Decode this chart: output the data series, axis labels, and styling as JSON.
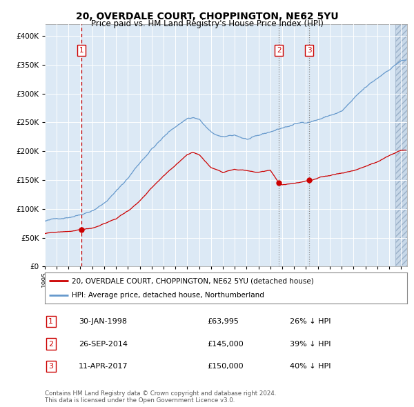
{
  "title1": "20, OVERDALE COURT, CHOPPINGTON, NE62 5YU",
  "title2": "Price paid vs. HM Land Registry's House Price Index (HPI)",
  "bg_color": "#dce9f5",
  "red_line_color": "#cc0000",
  "blue_line_color": "#6699cc",
  "sale1_date_num": 1998.08,
  "sale1_price": 63995,
  "sale2_date_num": 2014.73,
  "sale2_price": 145000,
  "sale3_date_num": 2017.28,
  "sale3_price": 150000,
  "ylim_max": 420000,
  "ylim_min": 0,
  "xlim_min": 1995.0,
  "xlim_max": 2025.5,
  "legend_label_red": "20, OVERDALE COURT, CHOPPINGTON, NE62 5YU (detached house)",
  "legend_label_blue": "HPI: Average price, detached house, Northumberland",
  "table_rows": [
    {
      "num": "1",
      "date": "30-JAN-1998",
      "price": "£63,995",
      "hpi": "26% ↓ HPI"
    },
    {
      "num": "2",
      "date": "26-SEP-2014",
      "price": "£145,000",
      "hpi": "39% ↓ HPI"
    },
    {
      "num": "3",
      "date": "11-APR-2017",
      "price": "£150,000",
      "hpi": "40% ↓ HPI"
    }
  ],
  "footer": "Contains HM Land Registry data © Crown copyright and database right 2024.\nThis data is licensed under the Open Government Licence v3.0."
}
